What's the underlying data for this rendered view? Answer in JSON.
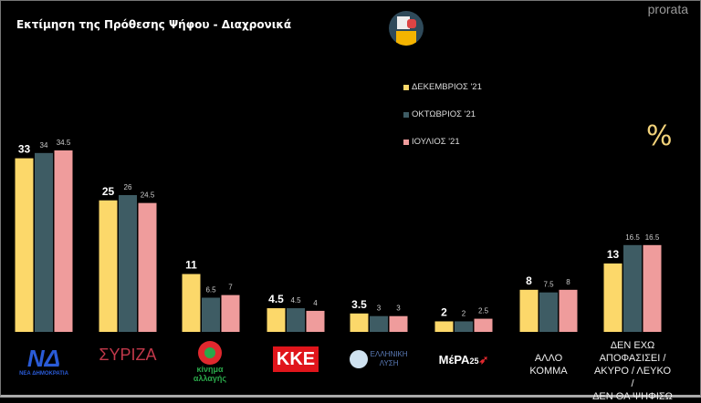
{
  "title": "Εκτίμηση της Πρόθεσης Ψήφου - Διαχρονικά",
  "brand": "prorata",
  "unit_symbol": "%",
  "colors": {
    "dec": "#fcd86a",
    "oct": "#3e5c64",
    "jul": "#ef9c9c",
    "background": "#000000"
  },
  "chart_data": {
    "type": "bar",
    "title": "Εκτίμηση της Πρόθεσης Ψήφου - Διαχρονικά",
    "categories": [
      "ΝΔ",
      "ΣΥΡΙΖΑ",
      "Κίνημα Αλλαγής",
      "ΚΚΕ",
      "Ελληνική Λύση",
      "ΜέΡΑ25",
      "ΑΛΛΟ ΚΟΜΜΑ",
      "ΔΕΝ ΕΧΩ ΑΠΟΦΑΣΙΣΕΙ / ΑΚΥΡΟ / ΛΕΥΚΟ / ΔΕΝ ΘΑ ΨΗΦΙΣΩ"
    ],
    "series": [
      {
        "name": "ΔΕΚΕΜΒΡΙΟΣ '21",
        "values": [
          33,
          25,
          11,
          4.5,
          3.5,
          2,
          8,
          13
        ]
      },
      {
        "name": "ΟΚΤΩΒΡΙΟΣ '21",
        "values": [
          34,
          26,
          6.5,
          4.5,
          3,
          2,
          7.5,
          16.5
        ]
      },
      {
        "name": "ΙΟΥΛΙΟΣ '21",
        "values": [
          34.5,
          24.5,
          7,
          4,
          3,
          2.5,
          8,
          16.5
        ]
      }
    ],
    "ylim": [
      0,
      36
    ],
    "grid": false,
    "legend": "top-right",
    "unit": "%"
  },
  "logos": [
    "ΝΔ ΝΕΑ ΔΗΜΟΚΡΑΤΙΑ",
    "ΣΥΡΙΖΑ",
    "κίνημα αλλαγής",
    "ΚΚΕ",
    "ΕΛΛΗΝΙΚΗ ΛΥΣΗ",
    "ΜέΡΑ25"
  ],
  "text_labels": {
    "other": [
      "ΑΛΛΟ",
      "ΚΟΜΜΑ"
    ],
    "undecided": [
      "ΔΕΝ ΕΧΩ",
      "ΑΠΟΦΑΣΙΣΕΙ /",
      "ΑΚΥΡΟ / ΛΕΥΚΟ /",
      "ΔΕΝ ΘΑ ΨΗΦΙΣΩ"
    ]
  }
}
